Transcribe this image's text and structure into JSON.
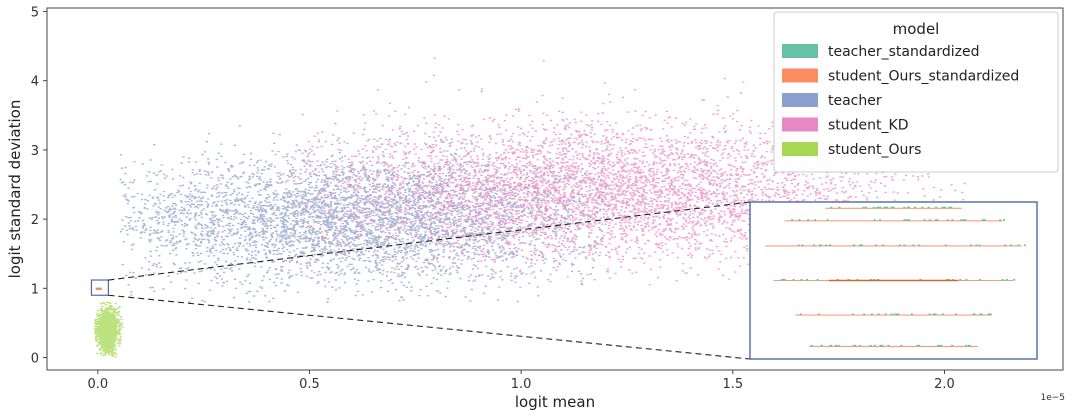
{
  "chart_data": {
    "type": "scatter",
    "title": "",
    "xlabel": "logit mean",
    "ylabel": "logit standard deviation",
    "x_offset_label": "1e−5",
    "x_scale_factor": 1e-05,
    "xlim": [
      -0.12,
      2.28
    ],
    "ylim": [
      -0.18,
      5.05
    ],
    "x_ticks": [
      0.0,
      0.5,
      1.0,
      1.5,
      2.0
    ],
    "x_tick_labels": [
      "0.0",
      "0.5",
      "1.0",
      "1.5",
      "2.0"
    ],
    "y_ticks": [
      0,
      1,
      2,
      3,
      4,
      5
    ],
    "y_tick_labels": [
      "0",
      "1",
      "2",
      "3",
      "4",
      "5"
    ],
    "grid": false,
    "legend": {
      "title": "model",
      "placement": "top-right",
      "entries": [
        {
          "name": "teacher_standardized",
          "color": "#66c2a5"
        },
        {
          "name": "student_Ours_standardized",
          "color": "#fc8d62"
        },
        {
          "name": "teacher",
          "color": "#8da0cb"
        },
        {
          "name": "student_KD",
          "color": "#e78ac3"
        },
        {
          "name": "student_Ours",
          "color": "#a6d854"
        }
      ]
    },
    "series": [
      {
        "name": "teacher",
        "color": "#8da0cb",
        "x_center": 0.6,
        "x_spread": 0.3,
        "y_center": 2.0,
        "y_spread": 0.45,
        "x_range": [
          0.05,
          1.2
        ],
        "y_range": [
          0.8,
          3.8
        ],
        "approx_points": 4500
      },
      {
        "name": "student_KD",
        "color": "#e78ac3",
        "x_center": 1.2,
        "x_spread": 0.35,
        "y_center": 2.4,
        "y_spread": 0.5,
        "x_range": [
          0.45,
          2.05
        ],
        "y_range": [
          1.0,
          4.9
        ],
        "approx_points": 5000
      },
      {
        "name": "student_Ours",
        "color": "#a6d854",
        "x_center": 0.02,
        "x_spread": 0.012,
        "y_center": 0.38,
        "y_spread": 0.15,
        "x_range": [
          -0.01,
          0.06
        ],
        "y_range": [
          0.0,
          0.8
        ],
        "approx_points": 1500
      },
      {
        "name": "teacher_standardized",
        "color": "#66c2a5",
        "x_center": 0.0,
        "y_value": 1.0
      },
      {
        "name": "student_Ours_standardized",
        "color": "#fc8d62",
        "x_center": 0.0,
        "y_value": 1.0
      }
    ],
    "inset": {
      "zoom_region": {
        "x": [
          -0.015,
          0.025
        ],
        "y": [
          0.9,
          1.12
        ]
      },
      "placement": "bottom-right",
      "rows": [
        {
          "level": 0.08,
          "half_width": 0.62
        },
        {
          "level": 0.28,
          "half_width": 0.72
        },
        {
          "level": 0.5,
          "half_width": 0.88
        },
        {
          "level": 0.72,
          "half_width": 0.94
        },
        {
          "level": 0.88,
          "half_width": 0.8
        },
        {
          "level": 0.96,
          "half_width": 0.5
        }
      ]
    }
  }
}
